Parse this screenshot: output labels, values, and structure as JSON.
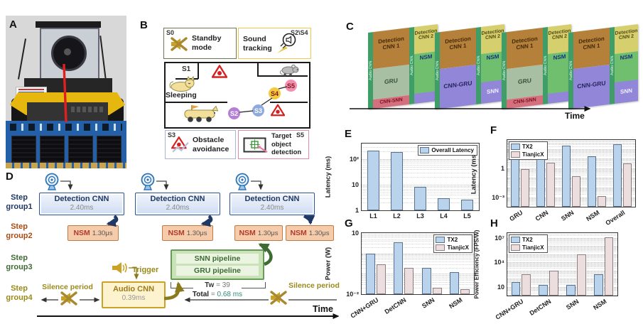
{
  "palette": {
    "navy": "#1f3864",
    "box_blue_border": "#2f5496",
    "rust": "#c45911",
    "green_dark": "#3e6b34",
    "olive": "#998a1a",
    "nsm_fill": "#f6cbaa",
    "nsm_border": "#c07845",
    "nsm_text": "#b03a2e",
    "green_fill": "#c9e2b8",
    "green_inner": "#eaf4e0",
    "gold": "#c9a227",
    "audio_fill": "#fdf3cf",
    "teal_value": "#2e8b7a",
    "chip_det1": "#b5813a",
    "chip_det2": "#d6cf6e",
    "chip_gru": "#a9bfa4",
    "chip_cnnsnn": "#d4707e",
    "chip_purple": "#9186d8",
    "chip_green": "#6fbf6f",
    "chip_strip": "#3f9e68",
    "pcb_blue": "#2460a8",
    "gold_edge": "#c9a44a",
    "robot_yellow": "#e6b80f",
    "red_accent": "#e02020"
  },
  "panelA": {
    "label": "A"
  },
  "panelB": {
    "label": "B",
    "s0": {
      "tag": "S0",
      "line1": "Standby",
      "line2": "mode"
    },
    "sound": {
      "tag": "S2\\S4",
      "line1": "Sound",
      "line2": "tracking"
    },
    "arena": {
      "s1": "S1",
      "sleeping": "Sleeping",
      "s2": "S2",
      "s3": "S3",
      "s4": "S4",
      "s5": "S5"
    },
    "s3box": {
      "tag": "S3",
      "line1": "Obstacle",
      "line2": "avoidance"
    },
    "s5box": {
      "tag": "S5",
      "line1": "Target",
      "line2": "object",
      "line3": "detection"
    }
  },
  "panelC": {
    "label": "C",
    "det1": "Detection CNN 1",
    "det2": "Detection CNN 2",
    "nsm": "NSM",
    "gru": "GRU",
    "cnn_snn": "CNN-SNN",
    "cnn_gru": "CNN-GRU",
    "snn": "SNN",
    "strip": "Audio CNN",
    "time_label": "Time"
  },
  "panelD": {
    "label": "D",
    "groups": [
      {
        "l1": "Step",
        "l2": "group1",
        "color": "#1f3864"
      },
      {
        "l1": "Step",
        "l2": "group2",
        "color": "#b04a14"
      },
      {
        "l1": "Step",
        "l2": "group3",
        "color": "#3e6b34"
      },
      {
        "l1": "Step",
        "l2": "group4",
        "color": "#998a1a"
      }
    ],
    "det_cnn": {
      "title": "Detection CNN",
      "time": "2.40ms"
    },
    "nsm": {
      "title": "NSM",
      "time": "1.30μs"
    },
    "pipelines": {
      "snn": "SNN pipeline",
      "gru": "GRU pipeline"
    },
    "audio": {
      "title": "Audio CNN",
      "time": "0.39ms"
    },
    "trigger": "Trigger",
    "silence_left": "Silence period",
    "silence_right": "Silence period",
    "tw_bold": "Tw",
    "tw_rest": " = 39",
    "total_bold": "Total",
    "total_eq": " = ",
    "total_value": "0.68 ms",
    "time_label": "Time"
  },
  "chart_data": [
    {
      "panel": "E",
      "type": "bar",
      "yscale": "log",
      "ylabel": "Latency (ms)",
      "ylim": [
        1,
        400
      ],
      "yticks": [
        {
          "value": 1,
          "label": "1"
        },
        {
          "value": 10,
          "label": "10"
        },
        {
          "value": 100,
          "label": "10²"
        }
      ],
      "categories": [
        "L1",
        "L2",
        "L3",
        "L4",
        "L5"
      ],
      "series": [
        {
          "name": "Overall Latency",
          "fill": "#b9d3ec",
          "border": "#56708e",
          "values": [
            210,
            185,
            8,
            2.9,
            2.6
          ]
        }
      ],
      "legend_position": "top-right",
      "xtick_rotation": 0
    },
    {
      "panel": "F",
      "type": "bar",
      "yscale": "log",
      "ylabel": "Latency (ms)",
      "ylim": [
        0.0001,
        900
      ],
      "yticks": [
        {
          "value": 1,
          "label": "1"
        },
        {
          "value": 0.001,
          "label": "10⁻³"
        }
      ],
      "categories": [
        "GRU",
        "CNN",
        "SNN",
        "NSM",
        "Overall"
      ],
      "series": [
        {
          "name": "TX2",
          "fill": "#b9d3ec",
          "border": "#56708e",
          "values": [
            9,
            20,
            250,
            18,
            350
          ]
        },
        {
          "name": "TianjicX",
          "fill": "#ecdede",
          "border": "#8d7f7f",
          "values": [
            0.85,
            3.8,
            0.16,
            0.0013,
            3.5
          ]
        }
      ],
      "legend_position": "top-left",
      "xtick_rotation": -33
    },
    {
      "panel": "G",
      "type": "bar",
      "yscale": "log",
      "ylabel": "Power (W)",
      "ylim": [
        0.01,
        10
      ],
      "yticks": [
        {
          "value": 10,
          "label": "10"
        },
        {
          "value": 0.01,
          "label": "10⁻²"
        }
      ],
      "categories": [
        "CNN+GRU",
        "DetCNN",
        "SNN",
        "NSM"
      ],
      "series": [
        {
          "name": "TX2",
          "fill": "#b9d3ec",
          "border": "#56708e",
          "values": [
            1.0,
            3.6,
            0.2,
            0.12
          ]
        },
        {
          "name": "TianjicX",
          "fill": "#ecdede",
          "border": "#8d7f7f",
          "values": [
            0.3,
            0.2,
            0.02,
            0.017
          ]
        }
      ],
      "legend_position": "top-right",
      "xtick_rotation": -33
    },
    {
      "panel": "H",
      "type": "bar",
      "yscale": "log",
      "ylabel": "Power Efficiency (FPS/W)",
      "ylim": [
        0.8,
        40000000
      ],
      "yticks": [
        {
          "value": 10,
          "label": "10"
        },
        {
          "value": 10000,
          "label": "10⁴"
        },
        {
          "value": 10000000,
          "label": "10⁷"
        }
      ],
      "categories": [
        "CNN+GRU",
        "DetCNN",
        "SNN",
        "NSM"
      ],
      "series": [
        {
          "name": "TX2",
          "fill": "#b9d3ec",
          "border": "#56708e",
          "values": [
            40,
            18,
            18,
            350
          ]
        },
        {
          "name": "TianjicX",
          "fill": "#ecdede",
          "border": "#8d7f7f",
          "values": [
            350,
            930,
            100000,
            12000000
          ]
        }
      ],
      "legend_position": "top-left",
      "xtick_rotation": -33
    }
  ]
}
